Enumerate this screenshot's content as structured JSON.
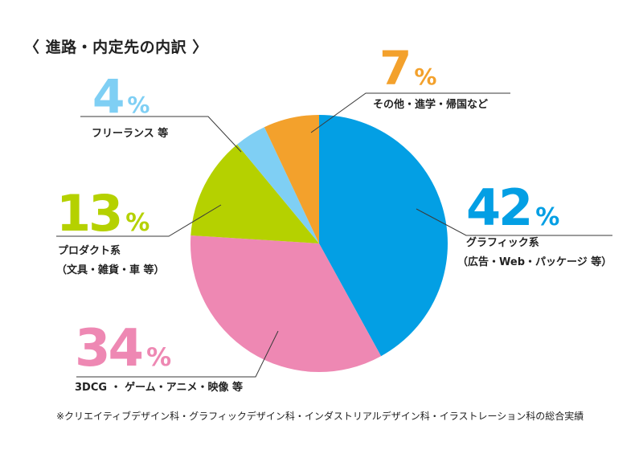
{
  "title": "〈 進路・内定先の内訳 〉",
  "footnote": "※クリエイティブデザイン科・グラフィックデザイン科・インダストリアルデザイン科・イラストレーション科の総合実績",
  "chart_data": {
    "type": "pie",
    "title": "〈 進路・内定先の内訳 〉",
    "unit": "%",
    "slices": [
      {
        "value": 42,
        "label_lines": [
          "グラフィック系",
          "（広告・Web・パッケージ 等）"
        ],
        "color": "#039fe4"
      },
      {
        "value": 34,
        "label_lines": [
          "3DCG ・ ゲーム・アニメ・映像 等"
        ],
        "color": "#ee88b3"
      },
      {
        "value": 13,
        "label_lines": [
          "プロダクト系",
          "（文具・雑貨・車 等）"
        ],
        "color": "#b5d100"
      },
      {
        "value": 4,
        "label_lines": [
          "フリーランス 等"
        ],
        "color": "#7fcff4"
      },
      {
        "value": 7,
        "label_lines": [
          "その他・進学・帰国など"
        ],
        "color": "#f3a12c"
      }
    ]
  }
}
